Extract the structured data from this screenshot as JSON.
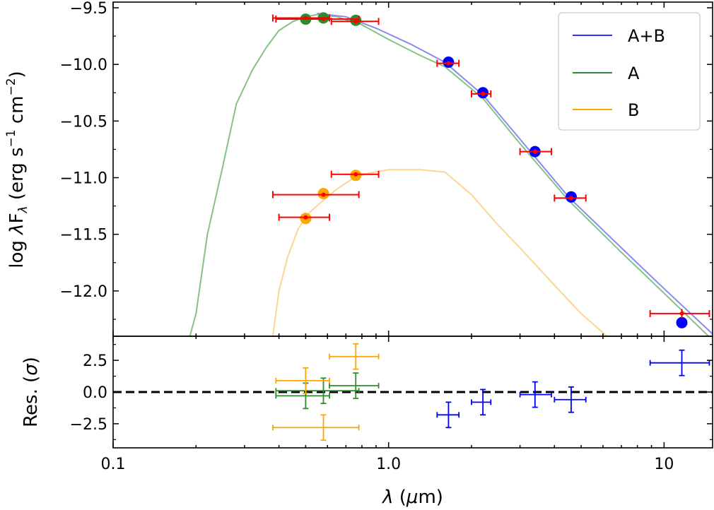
{
  "chart_data": [
    {
      "type": "line",
      "panel": "sed",
      "ylabel": "log λF_λ (erg s⁻¹ cm⁻²)",
      "ylabel_parts": [
        "log ",
        "λ",
        "F",
        "λ",
        " (erg s",
        "−1",
        " cm",
        "−2",
        ")"
      ],
      "xscale": "log",
      "xlim": [
        0.1,
        15
      ],
      "ylim": [
        -12.4,
        -9.45
      ],
      "yticks": [
        -9.5,
        -10.0,
        -10.5,
        -11.0,
        -11.5,
        -12.0
      ],
      "ytick_labels": [
        "−9.5",
        "−10.0",
        "−10.5",
        "−11.0",
        "−11.5",
        "−12.0"
      ],
      "legend": {
        "placement": "top-right",
        "entries": [
          {
            "label": "A+B",
            "color": "#3333ff"
          },
          {
            "label": "A",
            "color": "#2e8b2e"
          },
          {
            "label": "B",
            "color": "#ffa500"
          }
        ]
      },
      "series": [
        {
          "name": "A+B",
          "color": "#8a8af0",
          "x": [
            0.55,
            0.7,
            0.9,
            1.2,
            1.6,
            2.2,
            3.0,
            4.5,
            7.0,
            10.0,
            15.0
          ],
          "y": [
            -9.55,
            -9.58,
            -9.68,
            -9.82,
            -9.98,
            -10.27,
            -10.66,
            -11.17,
            -11.62,
            -11.98,
            -12.38
          ]
        },
        {
          "name": "A",
          "color": "#86c286",
          "x": [
            0.19,
            0.2,
            0.22,
            0.25,
            0.28,
            0.32,
            0.36,
            0.4,
            0.45,
            0.5,
            0.55,
            0.65,
            0.8,
            1.0,
            1.3,
            1.6,
            2.2,
            3.0,
            4.5,
            7.0,
            10.0,
            14.5
          ],
          "y": [
            -12.4,
            -12.2,
            -11.5,
            -10.9,
            -10.35,
            -10.05,
            -9.85,
            -9.7,
            -9.62,
            -9.58,
            -9.56,
            -9.58,
            -9.65,
            -9.78,
            -9.92,
            -10.02,
            -10.3,
            -10.7,
            -11.2,
            -11.66,
            -12.02,
            -12.4
          ]
        },
        {
          "name": "B",
          "color": "#fbd591",
          "x": [
            0.38,
            0.4,
            0.43,
            0.47,
            0.52,
            0.58,
            0.65,
            0.75,
            0.85,
            1.0,
            1.3,
            1.6,
            2.0,
            2.5,
            3.0,
            4.0,
            5.0,
            6.2
          ],
          "y": [
            -12.4,
            -12.0,
            -11.7,
            -11.45,
            -11.3,
            -11.2,
            -11.1,
            -11.0,
            -10.96,
            -10.93,
            -10.93,
            -10.95,
            -11.15,
            -11.42,
            -11.62,
            -11.95,
            -12.2,
            -12.4
          ]
        }
      ],
      "photometry": [
        {
          "group": "A",
          "color": "#2e8b2e",
          "x": 0.5,
          "y": -9.6
        },
        {
          "group": "A",
          "color": "#2e8b2e",
          "x": 0.58,
          "y": -9.59
        },
        {
          "group": "A",
          "color": "#2e8b2e",
          "x": 0.76,
          "y": -9.61
        },
        {
          "group": "B",
          "color": "#ffa500",
          "x": 0.5,
          "y": -11.36
        },
        {
          "group": "B",
          "color": "#ffa500",
          "x": 0.58,
          "y": -11.14
        },
        {
          "group": "B",
          "color": "#ffa500",
          "x": 0.76,
          "y": -10.98
        },
        {
          "group": "A+B",
          "color": "#0000ff",
          "x": 1.65,
          "y": -9.98
        },
        {
          "group": "A+B",
          "color": "#0000ff",
          "x": 2.2,
          "y": -10.25
        },
        {
          "group": "A+B",
          "color": "#0000ff",
          "x": 3.4,
          "y": -10.77
        },
        {
          "group": "A+B",
          "color": "#0000ff",
          "x": 4.6,
          "y": -11.17
        },
        {
          "group": "A+B",
          "color": "#0000ff",
          "x": 11.6,
          "y": -12.28
        }
      ],
      "observed": [
        {
          "x": 0.5,
          "xlo": 0.38,
          "xhi": 0.61,
          "y": -9.59,
          "yerr": 0.01
        },
        {
          "x": 0.58,
          "xlo": 0.39,
          "xhi": 0.78,
          "y": -9.6,
          "yerr": 0.01
        },
        {
          "x": 0.76,
          "xlo": 0.62,
          "xhi": 0.92,
          "y": -9.62,
          "yerr": 0.01
        },
        {
          "x": 0.5,
          "xlo": 0.4,
          "xhi": 0.61,
          "y": -11.35,
          "yerr": 0.01
        },
        {
          "x": 0.58,
          "xlo": 0.38,
          "xhi": 0.78,
          "y": -11.15,
          "yerr": 0.01
        },
        {
          "x": 0.76,
          "xlo": 0.62,
          "xhi": 0.92,
          "y": -10.97,
          "yerr": 0.01
        },
        {
          "x": 1.65,
          "xlo": 1.5,
          "xhi": 1.8,
          "y": -9.99,
          "yerr": 0.015
        },
        {
          "x": 2.2,
          "xlo": 2.0,
          "xhi": 2.35,
          "y": -10.26,
          "yerr": 0.015
        },
        {
          "x": 3.4,
          "xlo": 3.0,
          "xhi": 3.9,
          "y": -10.77,
          "yerr": 0.02
        },
        {
          "x": 4.6,
          "xlo": 4.0,
          "xhi": 5.2,
          "y": -11.18,
          "yerr": 0.02
        },
        {
          "x": 11.6,
          "xlo": 8.9,
          "xhi": 14.6,
          "y": -12.2,
          "yerr": 0.04
        }
      ]
    },
    {
      "type": "scatter",
      "panel": "residuals",
      "xlabel": "λ (μm)",
      "xlabel_parts": [
        "λ",
        " (",
        "μ",
        "m)"
      ],
      "ylabel": "Res. (σ)",
      "ylabel_parts": [
        "Res. (",
        "σ",
        ")"
      ],
      "xscale": "log",
      "xlim": [
        0.1,
        15
      ],
      "ylim": [
        -4.4,
        4.4
      ],
      "xticks": [
        0.1,
        1.0,
        10
      ],
      "xtick_labels": [
        "0.1",
        "1.0",
        "10"
      ],
      "yticks": [
        2.5,
        0.0,
        -2.5
      ],
      "ytick_labels": [
        "2.5",
        "0.0",
        "−2.5"
      ],
      "reference_line": 0,
      "points": [
        {
          "group": "A",
          "color": "#2e8b2e",
          "x": 0.5,
          "xlo": 0.39,
          "xhi": 0.61,
          "y": -0.3,
          "ylo": -1.3,
          "yhi": 0.7
        },
        {
          "group": "A",
          "color": "#2e8b2e",
          "x": 0.58,
          "xlo": 0.39,
          "xhi": 0.78,
          "y": 0.1,
          "ylo": -0.9,
          "yhi": 1.1
        },
        {
          "group": "A",
          "color": "#2e8b2e",
          "x": 0.76,
          "xlo": 0.61,
          "xhi": 0.92,
          "y": 0.5,
          "ylo": -0.5,
          "yhi": 1.5
        },
        {
          "group": "B",
          "color": "#ffa500",
          "x": 0.5,
          "xlo": 0.39,
          "xhi": 0.61,
          "y": 0.9,
          "ylo": -0.1,
          "yhi": 1.9
        },
        {
          "group": "B",
          "color": "#ffa500",
          "x": 0.58,
          "xlo": 0.38,
          "xhi": 0.78,
          "y": -2.8,
          "ylo": -3.8,
          "yhi": -1.8
        },
        {
          "group": "B",
          "color": "#ffa500",
          "x": 0.76,
          "xlo": 0.61,
          "xhi": 0.92,
          "y": 2.8,
          "ylo": 1.8,
          "yhi": 3.8
        },
        {
          "group": "A+B",
          "color": "#0000ff",
          "x": 1.65,
          "xlo": 1.5,
          "xhi": 1.8,
          "y": -1.8,
          "ylo": -2.8,
          "yhi": -0.8
        },
        {
          "group": "A+B",
          "color": "#0000ff",
          "x": 2.2,
          "xlo": 2.0,
          "xhi": 2.35,
          "y": -0.8,
          "ylo": -1.8,
          "yhi": 0.2
        },
        {
          "group": "A+B",
          "color": "#0000ff",
          "x": 3.4,
          "xlo": 3.0,
          "xhi": 3.9,
          "y": -0.2,
          "ylo": -1.2,
          "yhi": 0.8
        },
        {
          "group": "A+B",
          "color": "#0000ff",
          "x": 4.6,
          "xlo": 4.0,
          "xhi": 5.2,
          "y": -0.6,
          "ylo": -1.6,
          "yhi": 0.4
        },
        {
          "group": "A+B",
          "color": "#0000ff",
          "x": 11.6,
          "xlo": 8.9,
          "xhi": 14.6,
          "y": 2.3,
          "ylo": 1.3,
          "yhi": 3.3
        }
      ]
    }
  ]
}
